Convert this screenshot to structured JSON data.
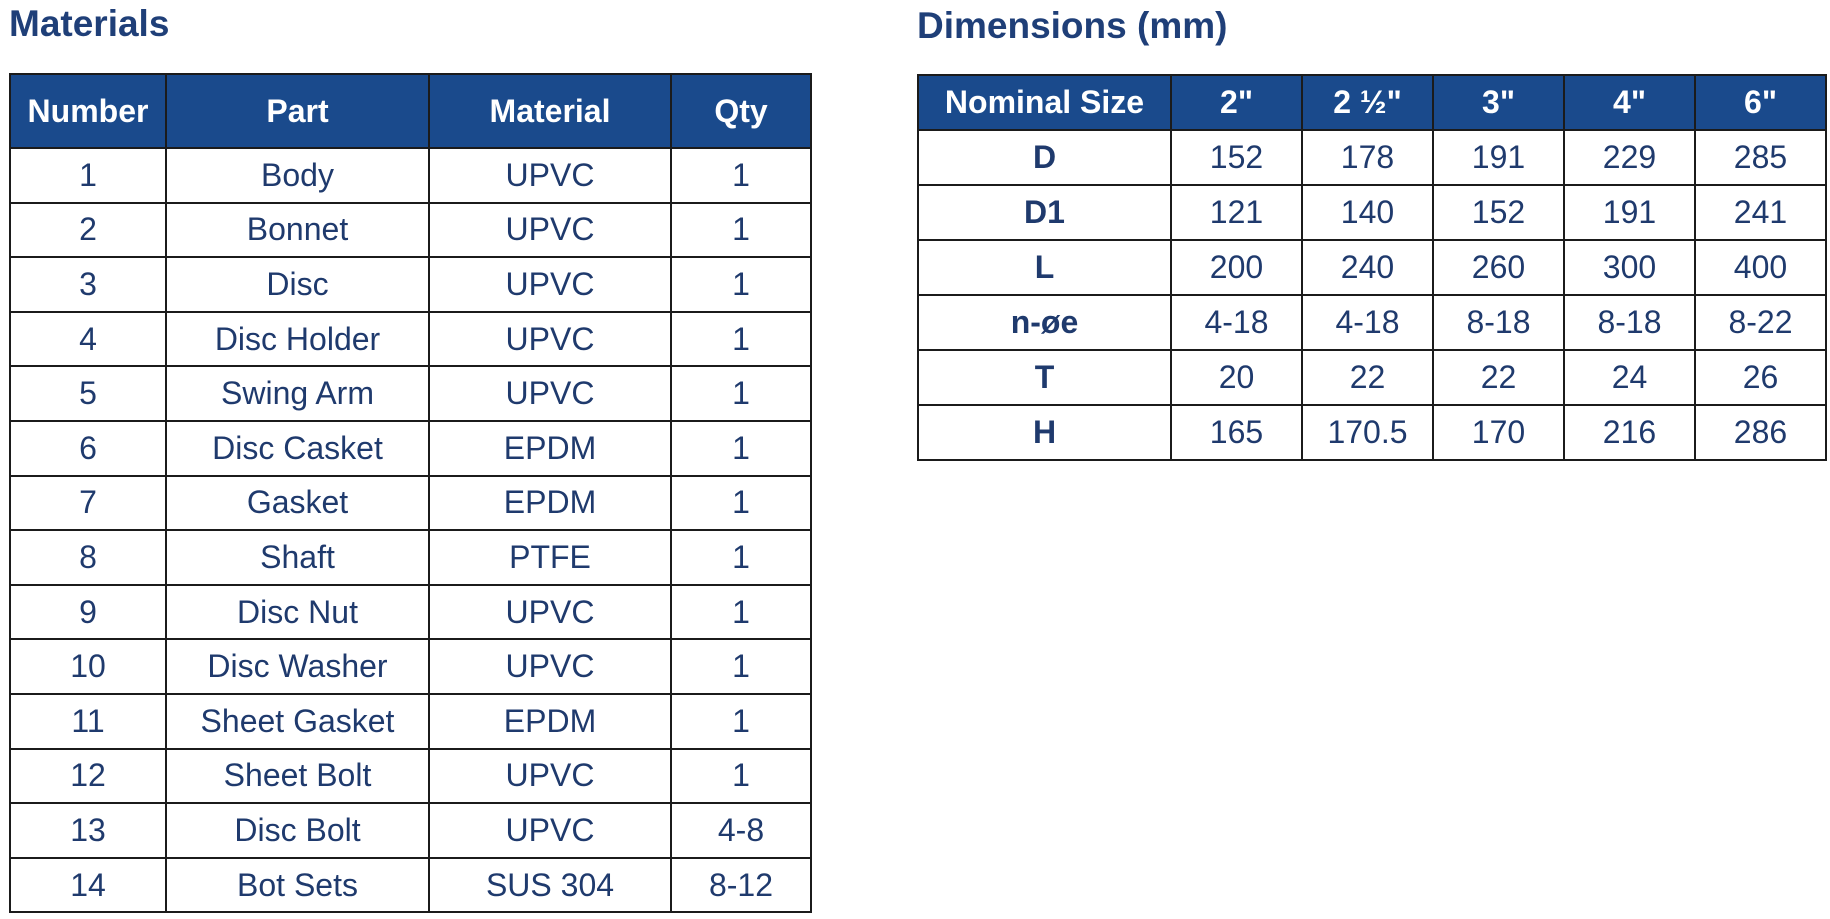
{
  "materials": {
    "title": "Materials",
    "header": [
      "Number",
      "Part",
      "Material",
      "Qty"
    ],
    "rows": [
      [
        "1",
        "Body",
        "UPVC",
        "1"
      ],
      [
        "2",
        "Bonnet",
        "UPVC",
        "1"
      ],
      [
        "3",
        "Disc",
        "UPVC",
        "1"
      ],
      [
        "4",
        "Disc Holder",
        "UPVC",
        "1"
      ],
      [
        "5",
        "Swing Arm",
        "UPVC",
        "1"
      ],
      [
        "6",
        "Disc Casket",
        "EPDM",
        "1"
      ],
      [
        "7",
        "Gasket",
        "EPDM",
        "1"
      ],
      [
        "8",
        "Shaft",
        "PTFE",
        "1"
      ],
      [
        "9",
        "Disc Nut",
        "UPVC",
        "1"
      ],
      [
        "10",
        "Disc Washer",
        "UPVC",
        "1"
      ],
      [
        "11",
        "Sheet Gasket",
        "EPDM",
        "1"
      ],
      [
        "12",
        "Sheet Bolt",
        "UPVC",
        "1"
      ],
      [
        "13",
        "Disc Bolt",
        "UPVC",
        "4-8"
      ],
      [
        "14",
        "Bot Sets",
        "SUS 304",
        "8-12"
      ]
    ]
  },
  "dimensions": {
    "title": "Dimensions (mm)",
    "header": [
      "Nominal Size",
      "2\"",
      "2 ½\"",
      "3\"",
      "4\"",
      "6\""
    ],
    "rows": [
      [
        "D",
        "152",
        "178",
        "191",
        "229",
        "285"
      ],
      [
        "D1",
        "121",
        "140",
        "152",
        "191",
        "241"
      ],
      [
        "L",
        "200",
        "240",
        "260",
        "300",
        "400"
      ],
      [
        "n-øe",
        "4-18",
        "4-18",
        "8-18",
        "8-18",
        "8-22"
      ],
      [
        "T",
        "20",
        "22",
        "22",
        "24",
        "26"
      ],
      [
        "H",
        "165",
        "170.5",
        "170",
        "216",
        "286"
      ]
    ]
  }
}
